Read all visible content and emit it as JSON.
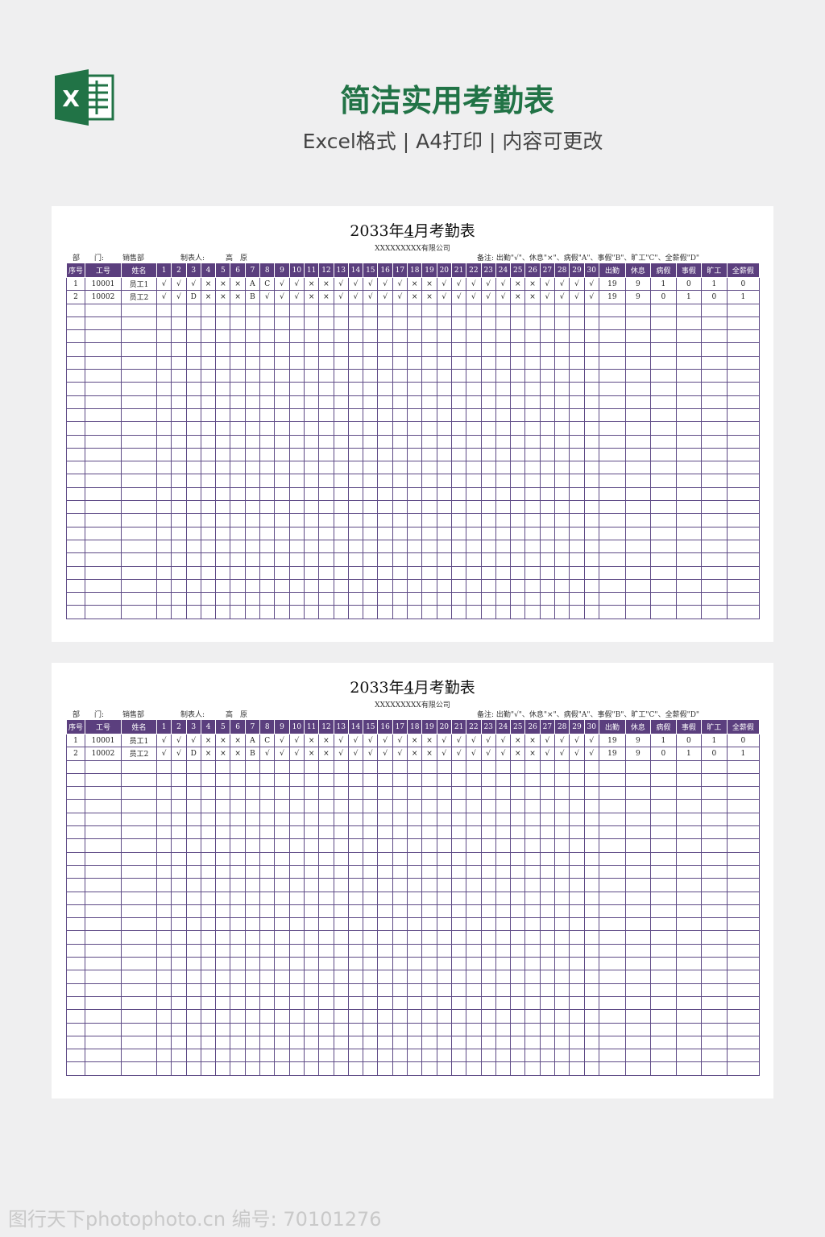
{
  "header": {
    "title": "简洁实用考勤表",
    "subtitle": "Excel格式 | A4打印 | 内容可更改",
    "logo_letter": "X"
  },
  "sheet": {
    "title_prefix": "2033年",
    "month": "4",
    "title_suffix": "月考勤表",
    "company": "XXXXXXXXX有限公司",
    "dept_label": "部　　门:",
    "dept": "销售部",
    "maker_label": "制表人:",
    "maker": "高　原",
    "legend": "备注: 出勤\"√\"、休息\"×\"、病假\"A\"、事假\"B\"、旷工\"C\"、全薪假\"D\"",
    "columns": [
      "序号",
      "工号",
      "姓名",
      "1",
      "2",
      "3",
      "4",
      "5",
      "6",
      "7",
      "8",
      "9",
      "10",
      "11",
      "12",
      "13",
      "14",
      "15",
      "16",
      "17",
      "18",
      "19",
      "20",
      "21",
      "22",
      "23",
      "24",
      "25",
      "26",
      "27",
      "28",
      "29",
      "30",
      "出勤",
      "休息",
      "病假",
      "事假",
      "旷工",
      "全薪假"
    ],
    "rows": [
      [
        "1",
        "10001",
        "员工1",
        "√",
        "√",
        "√",
        "×",
        "×",
        "×",
        "A",
        "C",
        "√",
        "√",
        "×",
        "×",
        "√",
        "√",
        "√",
        "√",
        "√",
        "×",
        "×",
        "√",
        "√",
        "√",
        "√",
        "√",
        "×",
        "×",
        "√",
        "√",
        "√",
        "√",
        "19",
        "9",
        "1",
        "0",
        "1",
        "0"
      ],
      [
        "2",
        "10002",
        "员工2",
        "√",
        "√",
        "D",
        "×",
        "×",
        "×",
        "B",
        "√",
        "√",
        "√",
        "×",
        "×",
        "√",
        "√",
        "√",
        "√",
        "√",
        "×",
        "×",
        "√",
        "√",
        "√",
        "√",
        "√",
        "×",
        "×",
        "√",
        "√",
        "√",
        "√",
        "19",
        "9",
        "0",
        "1",
        "0",
        "1"
      ]
    ],
    "empty_rows": 24
  },
  "watermark": "图行天下photophoto.cn  编号: 70101276",
  "colors": {
    "header_bg": "#5b3f7e",
    "grid": "#5e4a86",
    "brand": "#217346"
  }
}
